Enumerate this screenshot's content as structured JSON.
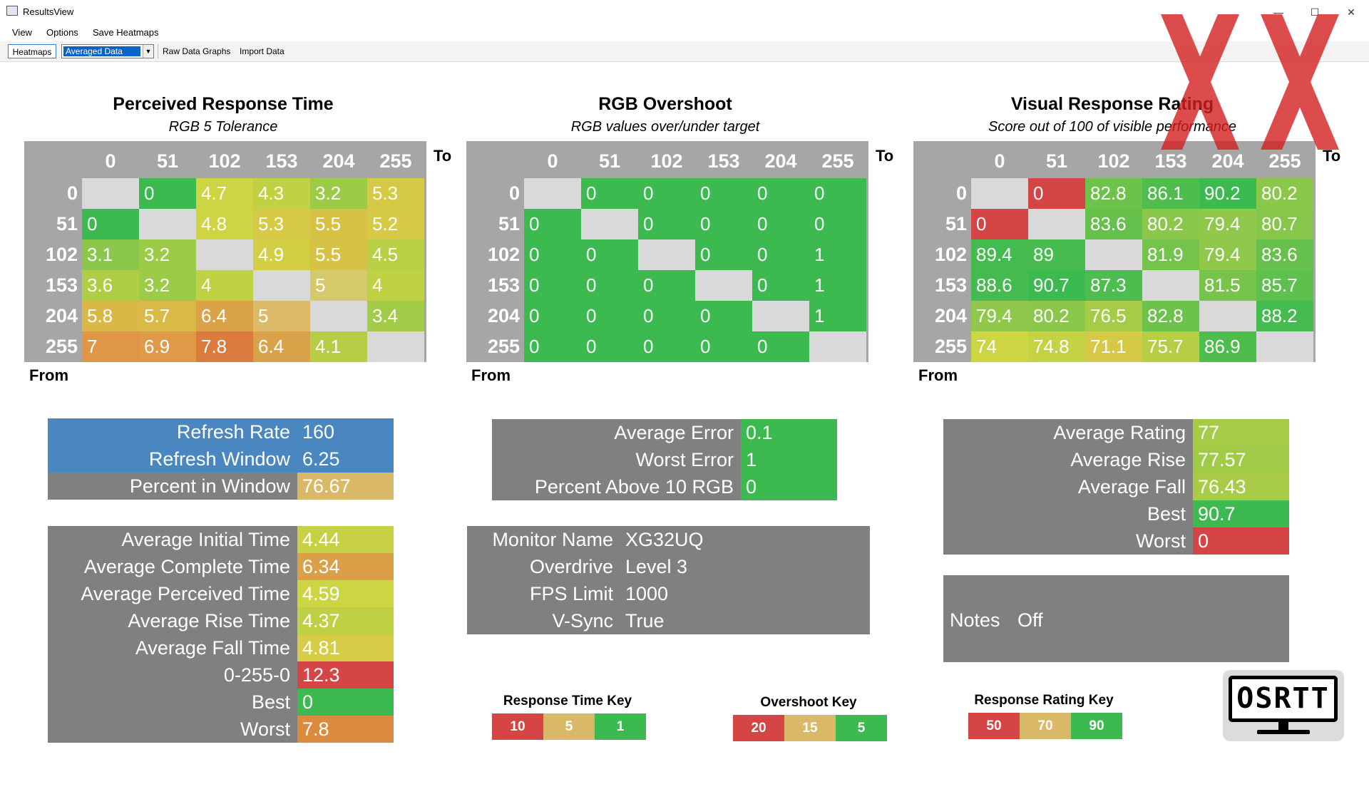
{
  "window": {
    "title": "ResultsView",
    "minimize": "—",
    "maximize": "☐",
    "close": "✕"
  },
  "menu": [
    "View",
    "Options",
    "Save Heatmaps"
  ],
  "toolbar": {
    "heatmaps": "Heatmaps",
    "mode": "Averaged Data",
    "raw": "Raw Data Graphs",
    "import": "Import Data"
  },
  "axes": {
    "levels": [
      "0",
      "51",
      "102",
      "153",
      "204",
      "255"
    ],
    "to": "To",
    "from": "From"
  },
  "heatmaps": [
    {
      "title": "Perceived Response Time",
      "subtitle": "RGB 5 Tolerance",
      "cells": [
        [
          "",
          "0",
          "4.7",
          "4.3",
          "3.2",
          "5.3"
        ],
        [
          "0",
          "",
          "4.8",
          "5.3",
          "5.5",
          "5.2"
        ],
        [
          "3.1",
          "3.2",
          "",
          "4.9",
          "5.5",
          "4.5"
        ],
        [
          "3.6",
          "3.2",
          "4",
          "",
          "5",
          "4"
        ],
        [
          "5.8",
          "5.7",
          "6.4",
          "5",
          "",
          "3.4"
        ],
        [
          "7",
          "6.9",
          "7.8",
          "6.4",
          "4.1",
          ""
        ]
      ],
      "colors": [
        [
          "#d9d9d9",
          "#3cba50",
          "#cdd543",
          "#c0d144",
          "#9ccb48",
          "#d6c946"
        ],
        [
          "#3cba50",
          "#d9d9d9",
          "#cfd443",
          "#d6c946",
          "#d8c246",
          "#d6c946"
        ],
        [
          "#8ac74a",
          "#9ccb48",
          "#d9d9d9",
          "#d2cf45",
          "#d8c246",
          "#b9cf45"
        ],
        [
          "#b0cd46",
          "#9ccb48",
          "#c0d144",
          "#d9d9d9",
          "#d6c96c",
          "#c0d144"
        ],
        [
          "#d9b848",
          "#d9ba48",
          "#dba349",
          "#dcba6a",
          "#d9d9d9",
          "#a2cc47"
        ],
        [
          "#df9647",
          "#de9a47",
          "#db7b3e",
          "#dba349",
          "#b5ce45",
          "#d9d9d9"
        ]
      ]
    },
    {
      "title": "RGB Overshoot",
      "subtitle": "RGB values over/under target",
      "cells": [
        [
          "",
          "0",
          "0",
          "0",
          "0",
          "0"
        ],
        [
          "0",
          "",
          "0",
          "0",
          "0",
          "0"
        ],
        [
          "0",
          "0",
          "",
          "0",
          "0",
          "1"
        ],
        [
          "0",
          "0",
          "0",
          "",
          "0",
          "1"
        ],
        [
          "0",
          "0",
          "0",
          "0",
          "",
          "1"
        ],
        [
          "0",
          "0",
          "0",
          "0",
          "0",
          ""
        ]
      ],
      "colors": [
        [
          "#d9d9d9",
          "#3cba50",
          "#3cba50",
          "#3cba50",
          "#3cba50",
          "#3cba50"
        ],
        [
          "#3cba50",
          "#d9d9d9",
          "#3cba50",
          "#3cba50",
          "#3cba50",
          "#3cba50"
        ],
        [
          "#3cba50",
          "#3cba50",
          "#d9d9d9",
          "#3cba50",
          "#3cba50",
          "#3cba50"
        ],
        [
          "#3cba50",
          "#3cba50",
          "#3cba50",
          "#d9d9d9",
          "#3cba50",
          "#3cba50"
        ],
        [
          "#3cba50",
          "#3cba50",
          "#3cba50",
          "#3cba50",
          "#d9d9d9",
          "#3cba50"
        ],
        [
          "#3cba50",
          "#3cba50",
          "#3cba50",
          "#3cba50",
          "#3cba50",
          "#d9d9d9"
        ]
      ]
    },
    {
      "title": "Visual Response Rating",
      "subtitle": "Score out of 100 of visible performance",
      "cells": [
        [
          "",
          "0",
          "82.8",
          "86.1",
          "90.2",
          "80.2"
        ],
        [
          "0",
          "",
          "83.6",
          "80.2",
          "79.4",
          "80.7"
        ],
        [
          "89.4",
          "89",
          "",
          "81.9",
          "79.4",
          "83.6"
        ],
        [
          "88.6",
          "90.7",
          "87.3",
          "",
          "81.5",
          "85.7"
        ],
        [
          "79.4",
          "80.2",
          "76.5",
          "82.8",
          "",
          "88.2"
        ],
        [
          "74",
          "74.8",
          "71.1",
          "75.7",
          "86.9",
          ""
        ]
      ],
      "colors": [
        [
          "#d9d9d9",
          "#d64545",
          "#6dc24c",
          "#4fbd4e",
          "#3cba50",
          "#8ac74a"
        ],
        [
          "#d64545",
          "#d9d9d9",
          "#66c14c",
          "#8ac74a",
          "#8fc84a",
          "#86c64a"
        ],
        [
          "#43bb4f",
          "#47bc4f",
          "#d9d9d9",
          "#74c34b",
          "#8fc84a",
          "#66c14c"
        ],
        [
          "#43bb4f",
          "#3cba50",
          "#4cbd4e",
          "#d9d9d9",
          "#78c44b",
          "#5ec04d"
        ],
        [
          "#8fc84a",
          "#8ac74a",
          "#a6cc47",
          "#6dc24c",
          "#d9d9d9",
          "#45bc4f"
        ],
        [
          "#cdd543",
          "#c4d244",
          "#d6c946",
          "#b5ce45",
          "#4fbd4e",
          "#d9d9d9"
        ]
      ]
    }
  ],
  "refresh": [
    {
      "label": "Refresh Rate",
      "value": "160"
    },
    {
      "label": "Refresh Window",
      "value": "6.25"
    },
    {
      "label": "Percent in Window",
      "value": "76.67"
    }
  ],
  "times": [
    {
      "label": "Average Initial Time",
      "value": "4.44"
    },
    {
      "label": "Average Complete Time",
      "value": "6.34"
    },
    {
      "label": "Average Perceived Time",
      "value": "4.59"
    },
    {
      "label": "Average Rise Time",
      "value": "4.37"
    },
    {
      "label": "Average Fall Time",
      "value": "4.81"
    },
    {
      "label": "0-255-0",
      "value": "12.3"
    },
    {
      "label": "Best",
      "value": "0"
    },
    {
      "label": "Worst",
      "value": "7.8"
    }
  ],
  "errors": [
    {
      "label": "Average Error",
      "value": "0.1"
    },
    {
      "label": "Worst Error",
      "value": "1"
    },
    {
      "label": "Percent Above 10 RGB",
      "value": "0"
    }
  ],
  "monitor": [
    {
      "label": "Monitor Name",
      "value": "XG32UQ"
    },
    {
      "label": "Overdrive",
      "value": "Level 3"
    },
    {
      "label": "FPS Limit",
      "value": "1000"
    },
    {
      "label": "V-Sync",
      "value": "True"
    }
  ],
  "ratings": [
    {
      "label": "Average Rating",
      "value": "77"
    },
    {
      "label": "Average Rise",
      "value": "77.57"
    },
    {
      "label": "Average Fall",
      "value": "76.43"
    },
    {
      "label": "Best",
      "value": "90.7"
    },
    {
      "label": "Worst",
      "value": "0"
    }
  ],
  "notes": {
    "label": "Notes",
    "value": "Off"
  },
  "keys": [
    {
      "title": "Response Time Key",
      "values": [
        "10",
        "5",
        "1"
      ]
    },
    {
      "title": "Overshoot Key",
      "values": [
        "20",
        "15",
        "5"
      ]
    },
    {
      "title": "Response Rating Key",
      "values": [
        "50",
        "70",
        "90"
      ]
    }
  ],
  "logo": {
    "text": "OSRTT"
  },
  "colors": {
    "red": "#d64545",
    "amber": "#d9b868",
    "green": "#3cba50",
    "blue": "#4a86c0",
    "grey": "#808080",
    "heat_bg": "#a6a6a6",
    "diag": "#d9d9d9"
  }
}
